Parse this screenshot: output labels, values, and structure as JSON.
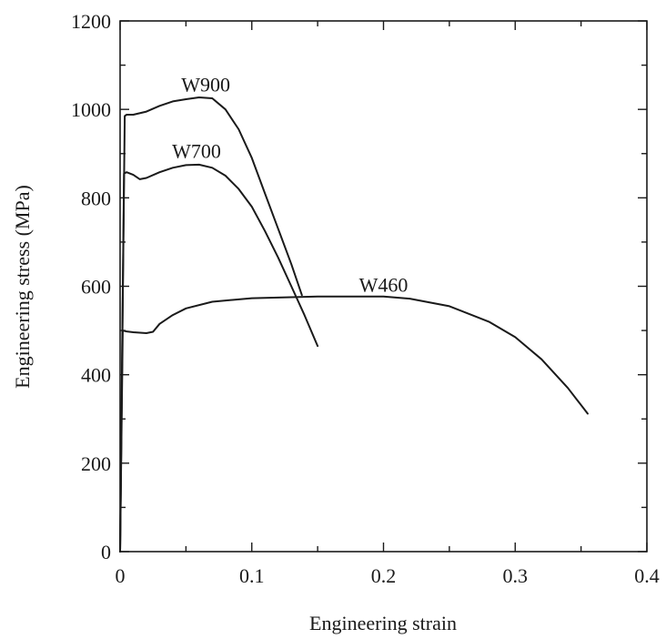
{
  "chart_data": {
    "type": "line",
    "title": "",
    "xlabel": "Engineering strain",
    "ylabel": "Engineering stress (MPa)",
    "xlim": [
      0,
      0.4
    ],
    "ylim": [
      0,
      1200
    ],
    "x_ticks": [
      0,
      0.1,
      0.2,
      0.3,
      0.4
    ],
    "x_tick_labels": [
      "0",
      "0.1",
      "0.2",
      "0.3",
      "0.4"
    ],
    "y_ticks": [
      0,
      200,
      400,
      600,
      800,
      1000,
      1200
    ],
    "y_tick_labels": [
      "0",
      "200",
      "400",
      "600",
      "800",
      "1000",
      "1200"
    ],
    "grid": false,
    "legend": "none (inline curve labels)",
    "series": [
      {
        "name": "W900",
        "x": [
          0,
          0.0035,
          0.005,
          0.01,
          0.02,
          0.03,
          0.04,
          0.05,
          0.06,
          0.07,
          0.08,
          0.09,
          0.1,
          0.11,
          0.12,
          0.13,
          0.138
        ],
        "y": [
          0,
          985,
          988,
          988,
          995,
          1008,
          1018,
          1023,
          1027,
          1025,
          1000,
          955,
          890,
          810,
          730,
          650,
          580
        ]
      },
      {
        "name": "W700",
        "x": [
          0,
          0.003,
          0.005,
          0.01,
          0.015,
          0.02,
          0.03,
          0.04,
          0.05,
          0.06,
          0.07,
          0.08,
          0.09,
          0.1,
          0.11,
          0.12,
          0.13,
          0.14,
          0.15
        ],
        "y": [
          0,
          855,
          858,
          852,
          842,
          845,
          858,
          868,
          874,
          875,
          868,
          850,
          820,
          780,
          725,
          665,
          600,
          535,
          465
        ]
      },
      {
        "name": "W460",
        "x": [
          0,
          0.002,
          0.005,
          0.01,
          0.02,
          0.025,
          0.03,
          0.04,
          0.05,
          0.07,
          0.1,
          0.15,
          0.2,
          0.22,
          0.25,
          0.28,
          0.3,
          0.32,
          0.34,
          0.355
        ],
        "y": [
          0,
          500,
          498,
          496,
          494,
          497,
          515,
          535,
          550,
          565,
          573,
          577,
          577,
          572,
          555,
          520,
          485,
          435,
          370,
          312
        ]
      }
    ]
  }
}
